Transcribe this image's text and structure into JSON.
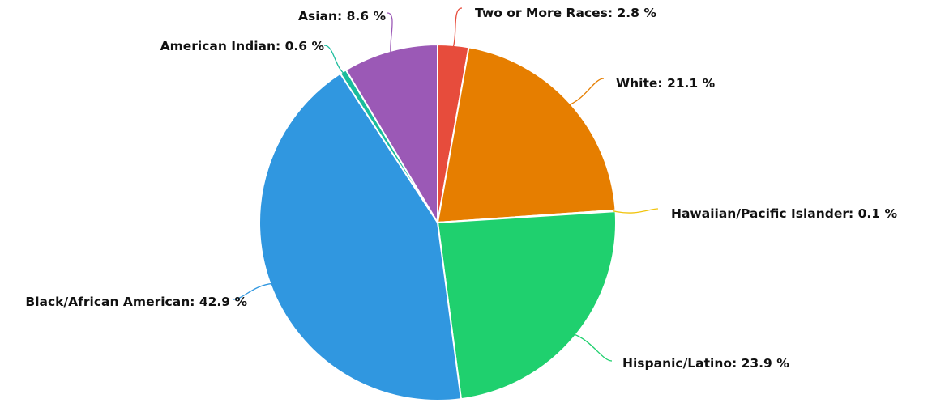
{
  "chart_data": {
    "type": "pie",
    "unit_suffix": " %",
    "slices": [
      {
        "label": "Two or More Races",
        "value": 2.8,
        "color": "#e74c3c"
      },
      {
        "label": "White",
        "value": 21.1,
        "color": "#e67e00"
      },
      {
        "label": "Hawaiian/Pacific Islander",
        "value": 0.1,
        "color": "#f1c40f"
      },
      {
        "label": "Hispanic/Latino",
        "value": 23.9,
        "color": "#1fd06e"
      },
      {
        "label": "Black/African American",
        "value": 42.9,
        "color": "#3097e0"
      },
      {
        "label": "American Indian",
        "value": 0.6,
        "color": "#1abc9c"
      },
      {
        "label": "Asian",
        "value": 8.6,
        "color": "#9b59b6"
      }
    ]
  }
}
